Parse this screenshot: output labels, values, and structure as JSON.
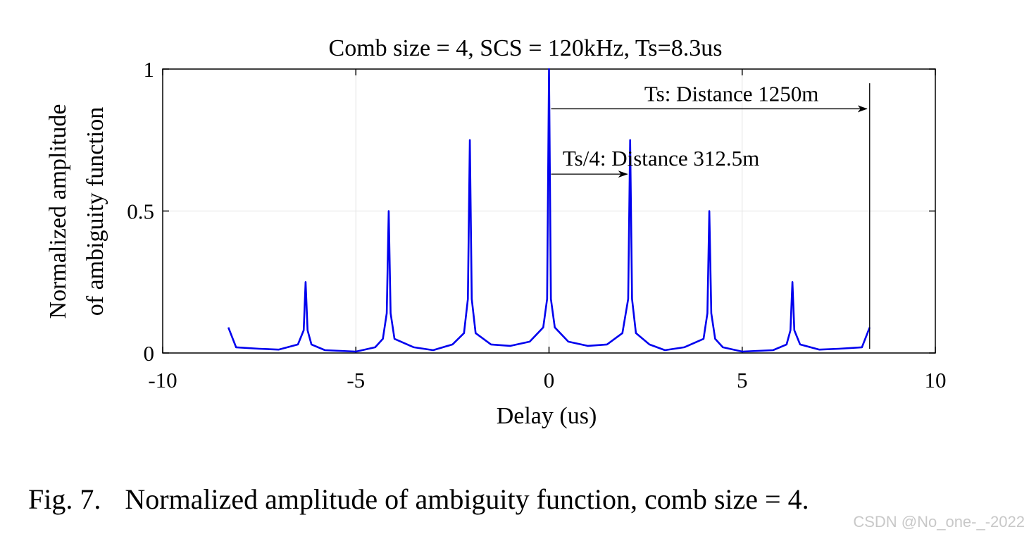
{
  "chart_data": {
    "type": "line",
    "title": "Comb size = 4, SCS = 120kHz, Ts=8.3us",
    "xlabel": "Delay (us)",
    "ylabel_lines": [
      "Normalized amplitude",
      "of ambiguity function"
    ],
    "xlim": [
      -10,
      10
    ],
    "ylim": [
      0,
      1
    ],
    "xticks": [
      -10,
      -5,
      0,
      5,
      10
    ],
    "xtick_labels": [
      "-10",
      "-5",
      "0",
      "5",
      "10"
    ],
    "yticks": [
      0,
      0.5,
      1
    ],
    "ytick_labels": [
      "0",
      "0.5",
      "1"
    ],
    "grid": true,
    "series": [
      {
        "color": "#0000ee",
        "x": [
          -8.3,
          -8.1,
          -7.5,
          -7.0,
          -6.5,
          -6.35,
          -6.3,
          -6.25,
          -6.15,
          -5.8,
          -5.0,
          -4.5,
          -4.3,
          -4.2,
          -4.15,
          -4.1,
          -4.0,
          -3.5,
          -3.0,
          -2.5,
          -2.2,
          -2.1,
          -2.05,
          -2.0,
          -1.9,
          -1.5,
          -1.0,
          -0.5,
          -0.15,
          -0.05,
          0.0,
          0.05,
          0.15,
          0.5,
          1.0,
          1.5,
          1.9,
          2.05,
          2.1,
          2.15,
          2.25,
          2.6,
          3.0,
          3.5,
          4.0,
          4.1,
          4.15,
          4.2,
          4.3,
          4.5,
          5.0,
          5.8,
          6.15,
          6.25,
          6.3,
          6.35,
          6.5,
          7.0,
          7.5,
          8.1,
          8.3
        ],
        "y": [
          0.09,
          0.02,
          0.015,
          0.012,
          0.03,
          0.08,
          0.25,
          0.08,
          0.03,
          0.01,
          0.005,
          0.02,
          0.05,
          0.14,
          0.5,
          0.14,
          0.05,
          0.02,
          0.01,
          0.03,
          0.07,
          0.19,
          0.75,
          0.19,
          0.07,
          0.03,
          0.025,
          0.04,
          0.09,
          0.19,
          1.0,
          0.19,
          0.09,
          0.04,
          0.025,
          0.03,
          0.07,
          0.19,
          0.75,
          0.19,
          0.07,
          0.03,
          0.01,
          0.02,
          0.05,
          0.14,
          0.5,
          0.14,
          0.05,
          0.02,
          0.005,
          0.01,
          0.03,
          0.08,
          0.25,
          0.08,
          0.03,
          0.012,
          0.015,
          0.02,
          0.09
        ]
      }
    ],
    "annotations": [
      {
        "text": "Ts: Distance 1250m",
        "x_start": 0,
        "x_end": 8.3,
        "y": 0.86,
        "marker_line_x": 8.3,
        "marker_line_top": 0.95
      },
      {
        "text": "Ts/4: Distance 312.5m",
        "x_start": 0,
        "x_end": 2.1,
        "y": 0.63
      }
    ]
  },
  "caption": {
    "label": "Fig. 7.",
    "text": "Normalized amplitude of ambiguity function, comb size = 4."
  },
  "watermark": "CSDN @No_one-_-2022"
}
